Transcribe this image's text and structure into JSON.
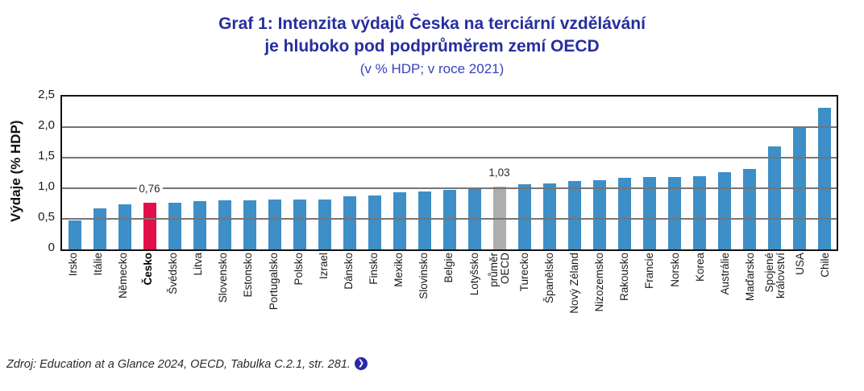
{
  "title": {
    "line1": "Graf 1: Intenzita výdajů Česka na terciární vzdělávání",
    "line2": "je hluboko pod podprůměrem zemí OECD",
    "subtitle": "(v % HDP; v roce 2021)"
  },
  "chart_data": {
    "type": "bar",
    "title": "Graf 1: Intenzita výdajů Česka na terciární vzdělávání je hluboko pod podprůměrem zemí OECD",
    "subtitle": "(v % HDP; v roce 2021)",
    "xlabel": "",
    "ylabel": "Výdaje (% HDP)",
    "ylim": [
      0,
      2.5
    ],
    "grid": true,
    "ytick_values": [
      0,
      0.5,
      1.0,
      1.5,
      2.0,
      2.5
    ],
    "ytick_labels": [
      "0",
      "0,5",
      "1,0",
      "1,5",
      "2,0",
      "2,5"
    ],
    "categories": [
      "Irsko",
      "Itálie",
      "Německo",
      "Česko",
      "Švédsko",
      "Litva",
      "Slovensko",
      "Estonsko",
      "Portugalsko",
      "Polsko",
      "Izrael",
      "Dánsko",
      "Finsko",
      "Mexiko",
      "Slovinsko",
      "Belgie",
      "Lotyšsko",
      "průměr\nOECD",
      "Turecko",
      "Španělsko",
      "Nový Zéland",
      "Nizozemsko",
      "Rakousko",
      "Francie",
      "Norsko",
      "Korea",
      "Austrálie",
      "Maďarsko",
      "Spojené\nkrálovství",
      "USA",
      "Chile"
    ],
    "values": [
      0.48,
      0.67,
      0.74,
      0.76,
      0.76,
      0.79,
      0.8,
      0.8,
      0.81,
      0.81,
      0.82,
      0.87,
      0.88,
      0.94,
      0.95,
      0.97,
      1.0,
      1.03,
      1.06,
      1.08,
      1.12,
      1.13,
      1.17,
      1.18,
      1.19,
      1.2,
      1.26,
      1.32,
      1.69,
      2.01,
      2.31
    ],
    "highlight_index": 3,
    "average_index": 17,
    "data_labels": [
      {
        "index": 3,
        "text": "0,76"
      },
      {
        "index": 17,
        "text": "1,03"
      }
    ],
    "colors": {
      "bar_default": "#3E8EC7",
      "bar_highlight": "#E11048",
      "bar_average": "#ADADAD",
      "title": "#272E9E",
      "subtitle": "#3642C0",
      "gridline": "#757575",
      "link_icon": "#2929A8"
    },
    "legend": null
  },
  "footer": {
    "source": "Zdroj: Education at a Glance 2024, OECD, Tabulka C.2.1, str. 281.",
    "link_icon": "chevron-right-circle-icon",
    "link_glyph": "❯"
  }
}
